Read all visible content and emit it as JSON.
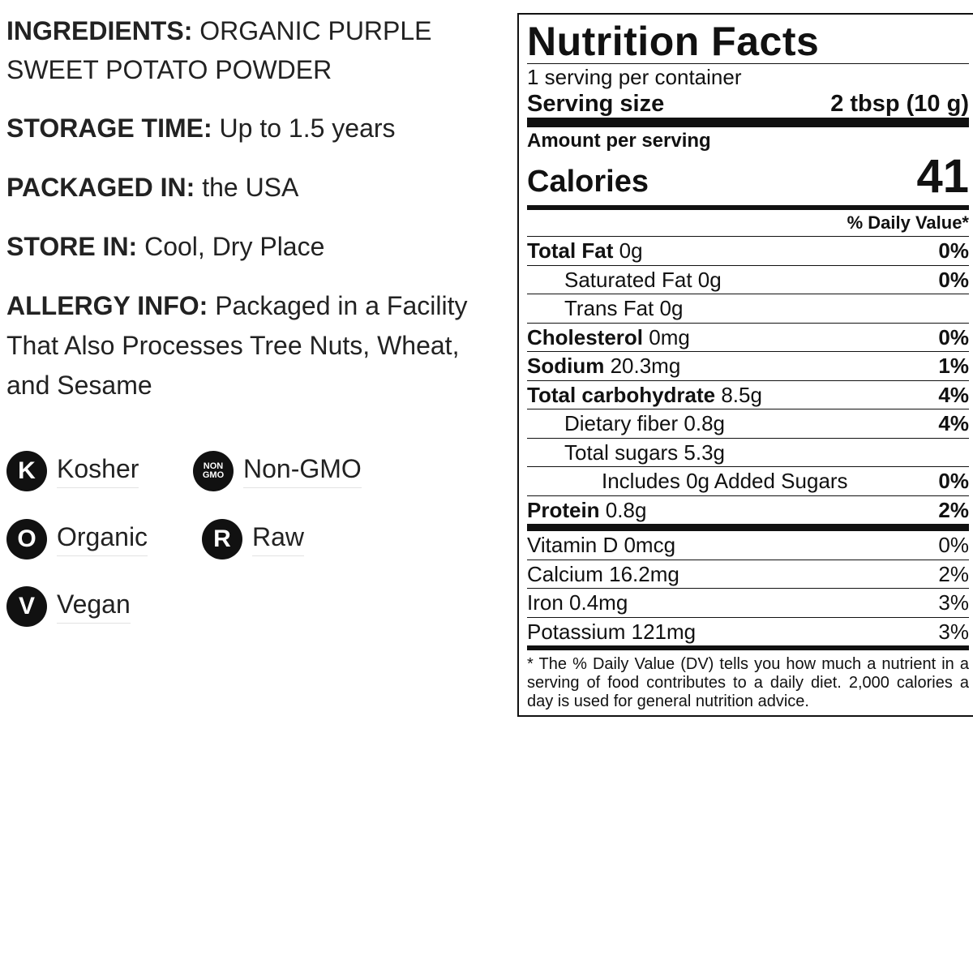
{
  "info": {
    "ingredients_key": "INGREDIENTS:",
    "ingredients_val": " ORGANIC PURPLE SWEET POTATO POWDER",
    "storage_key": "STORAGE TIME:",
    "storage_val": " Up to 1.5 years",
    "packaged_key": "PACKAGED IN:",
    "packaged_val": " the USA",
    "store_key": "STORE IN:",
    "store_val": " Cool, Dry Place",
    "allergy_key": "ALLERGY INFO:",
    "allergy_val": " Packaged in a Facility That Also Processes Tree Nuts, Wheat, and Sesame"
  },
  "badges": {
    "kosher": {
      "glyph": "K",
      "label": "Kosher"
    },
    "nongmo": {
      "glyph1": "NON",
      "glyph2": "GMO",
      "label": "Non-GMO"
    },
    "organic": {
      "glyph": "O",
      "label": "Organic"
    },
    "raw": {
      "glyph": "R",
      "label": "Raw"
    },
    "vegan": {
      "glyph": "V",
      "label": "Vegan"
    }
  },
  "facts": {
    "title": "Nutrition Facts",
    "servings": "1 serving per container",
    "serving_size_label": "Serving size",
    "serving_size_value": "2 tbsp (10 g)",
    "amount_per_serving": "Amount per serving",
    "calories_label": "Calories",
    "calories_value": "41",
    "daily_value_header": "% Daily Value*",
    "total_fat": {
      "label": "Total Fat",
      "amount": " 0g",
      "dv": "0%"
    },
    "sat_fat": {
      "label": "Saturated Fat 0g",
      "dv": "0%"
    },
    "trans_fat": {
      "label": "Trans Fat 0g"
    },
    "cholesterol": {
      "label": "Cholesterol",
      "amount": " 0mg",
      "dv": "0%"
    },
    "sodium": {
      "label": "Sodium",
      "amount": " 20.3mg",
      "dv": "1%"
    },
    "carb": {
      "label": "Total carbohydrate",
      "amount": " 8.5g",
      "dv": "4%"
    },
    "fiber": {
      "label": "Dietary fiber 0.8g",
      "dv": "4%"
    },
    "sugars": {
      "label": "Total sugars 5.3g"
    },
    "added_sugars": {
      "label": "Includes 0g Added Sugars",
      "dv": "0%"
    },
    "protein": {
      "label": "Protein",
      "amount": " 0.8g",
      "dv": "2%"
    },
    "vitd": {
      "label": "Vitamin D 0mcg",
      "dv": "0%"
    },
    "calcium": {
      "label": "Calcium 16.2mg",
      "dv": "2%"
    },
    "iron": {
      "label": "Iron 0.4mg",
      "dv": "3%"
    },
    "potassium": {
      "label": "Potassium 121mg",
      "dv": "3%"
    },
    "footnote": "* The % Daily Value (DV) tells you how much a nutrient in a serving of food contributes to a daily diet. 2,000 calories a day is used for general nutrition advice."
  }
}
